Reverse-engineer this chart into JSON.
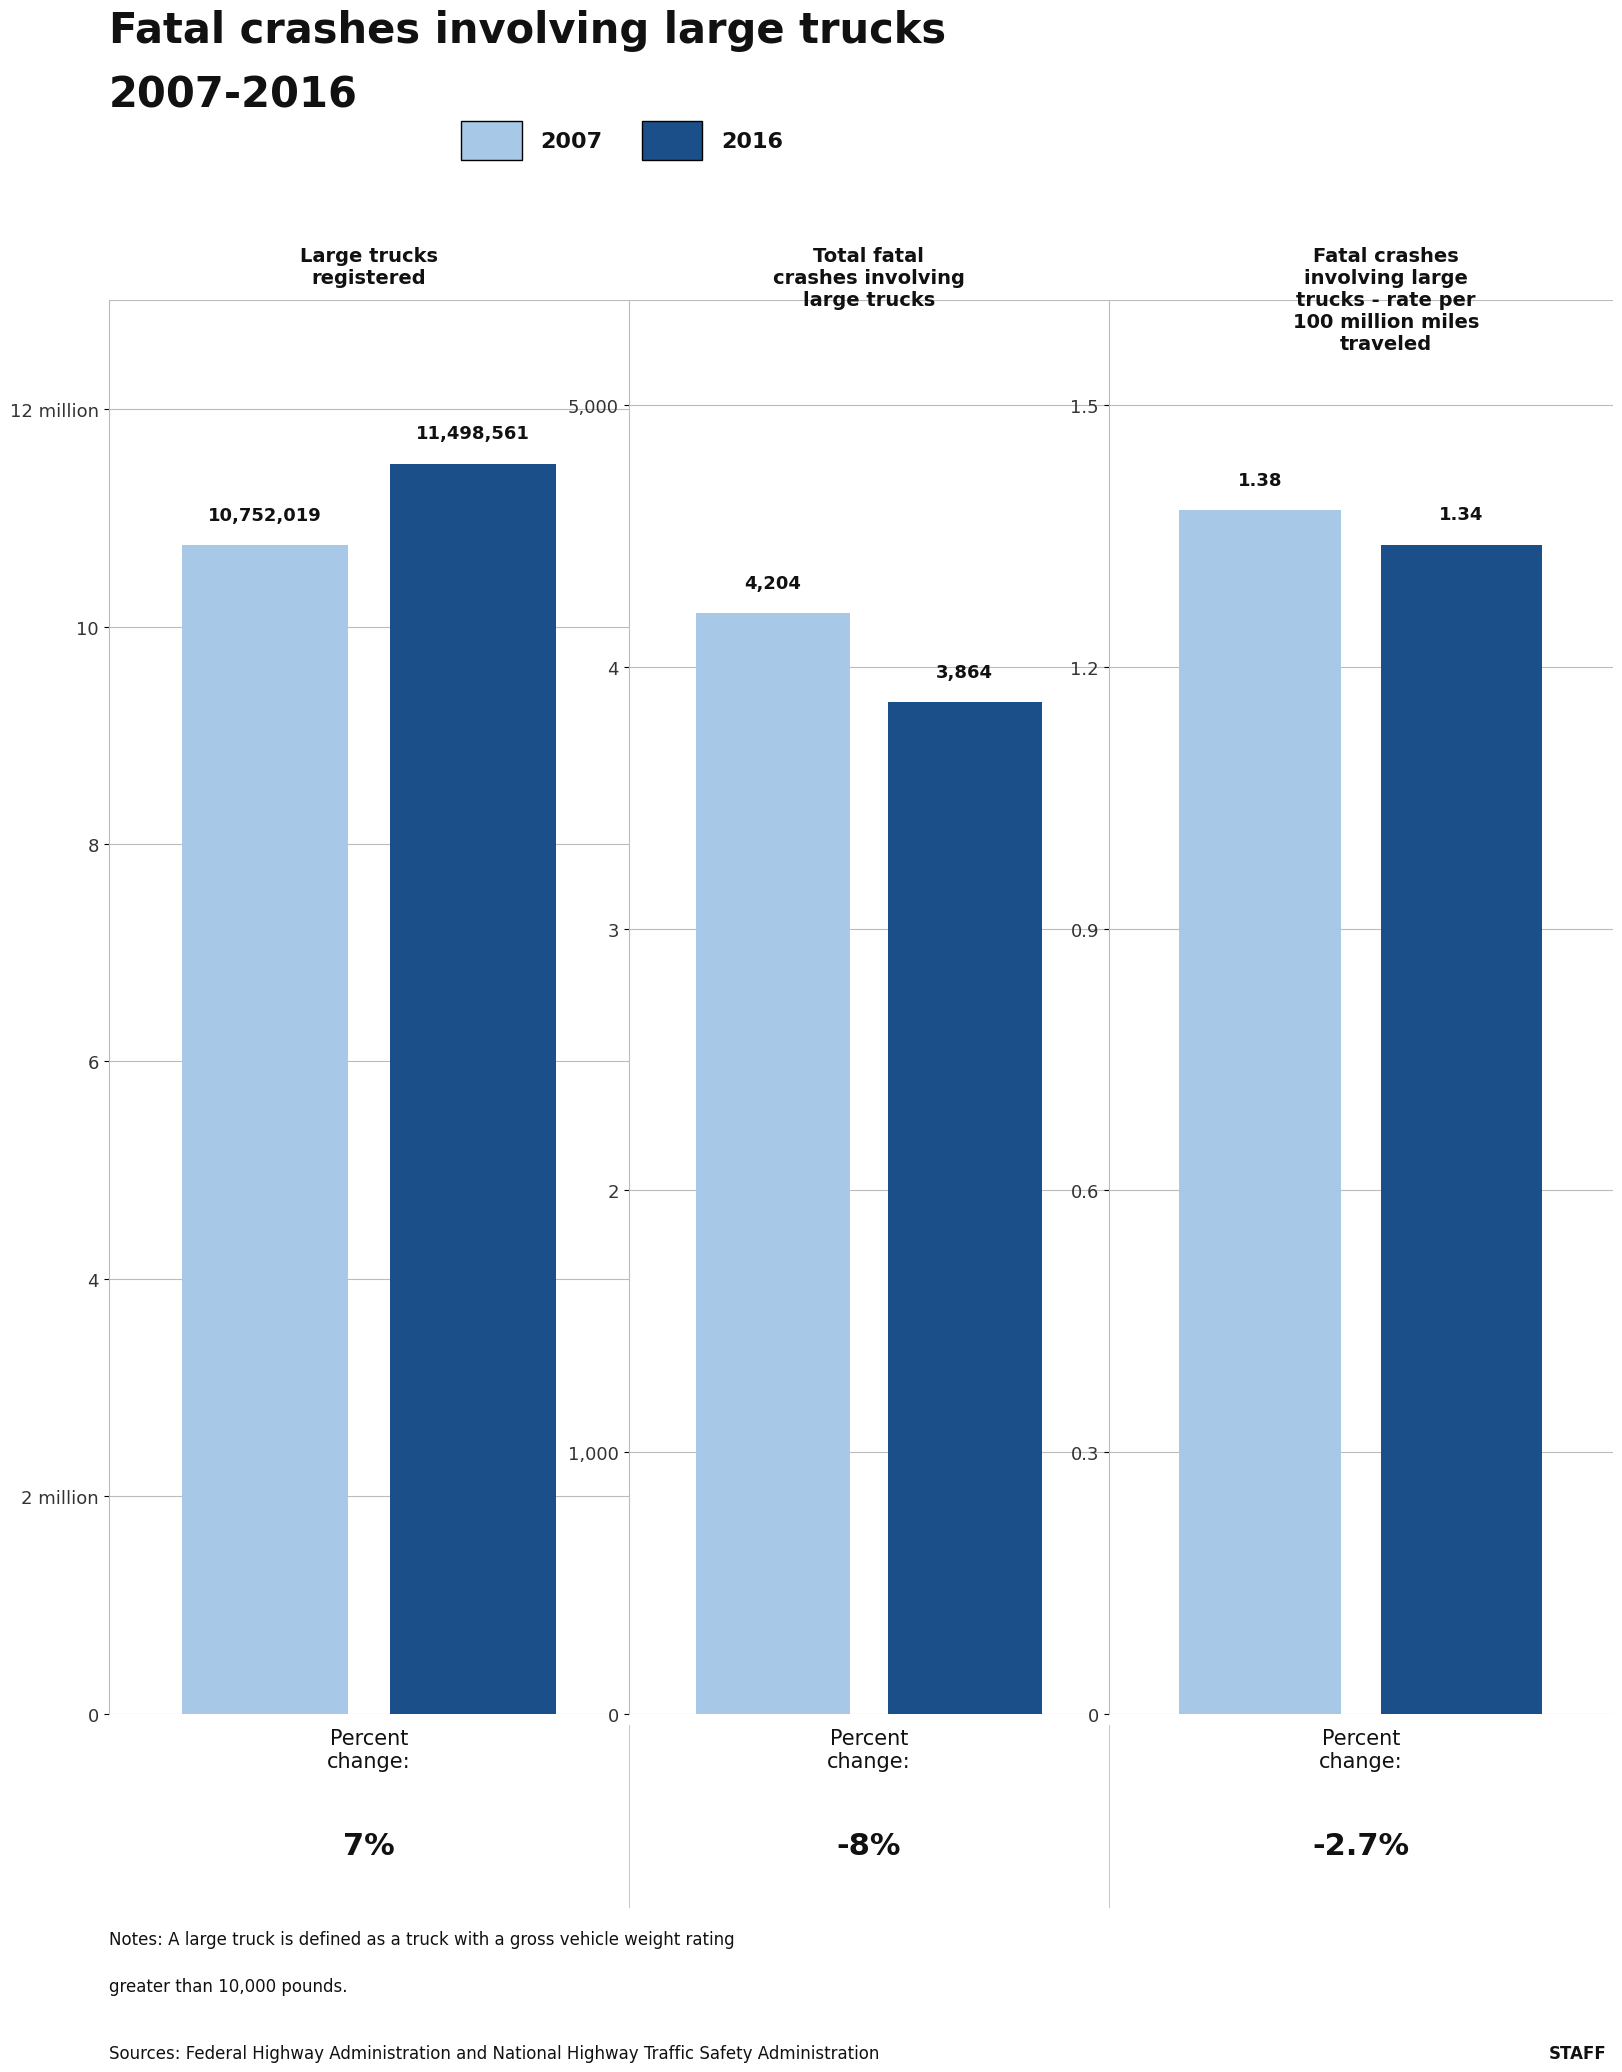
{
  "title_line1": "Fatal crashes involving large trucks",
  "title_line2": "2007-2016",
  "title_fontsize": 30,
  "color_light_blue": "#a8c8e8",
  "color_dark_blue": "#1a4f8a",
  "panel1": {
    "subtitle": "Large trucks\nregistered",
    "val_2007": 10752019,
    "val_2016": 11498561,
    "label_2007": "10,752,019",
    "label_2016": "11,498,561",
    "yticks": [
      0,
      2000000,
      4000000,
      6000000,
      8000000,
      10000000,
      12000000
    ],
    "ytick_labels": [
      "0",
      "2 million",
      "4",
      "6",
      "8",
      "10",
      "12 million"
    ],
    "ymax": 13000000,
    "percent_change": "7%"
  },
  "panel2": {
    "subtitle": "Total fatal\ncrashes involving\nlarge trucks",
    "val_2007": 4204,
    "val_2016": 3864,
    "label_2007": "4,204",
    "label_2016": "3,864",
    "yticks": [
      0,
      1000,
      2000,
      3000,
      4000,
      5000
    ],
    "ytick_labels": [
      "0",
      "1,000",
      "2",
      "3",
      "4",
      "5,000"
    ],
    "ymax": 5400,
    "percent_change": "-8%"
  },
  "panel3": {
    "subtitle": "Fatal crashes\ninvolving large\ntrucks - rate per\n100 million miles\ntraveled",
    "val_2007": 1.38,
    "val_2016": 1.34,
    "label_2007": "1.38",
    "label_2016": "1.34",
    "yticks": [
      0,
      0.3,
      0.6,
      0.9,
      1.2,
      1.5
    ],
    "ytick_labels": [
      "0",
      "0.3",
      "0.6",
      "0.9",
      "1.2",
      "1.5"
    ],
    "ymax": 1.62,
    "percent_change": "-2.7%"
  },
  "legend_2007": "2007",
  "legend_2016": "2016",
  "notes_line1": "Notes: A large truck is defined as a truck with a gross vehicle weight rating",
  "notes_line2": "greater than 10,000 pounds.",
  "sources": "Sources: Federal Highway Administration and National Highway Traffic Safety Administration",
  "staff": "STAFF",
  "bg_color": "#ffffff",
  "grid_color": "#bbbbbb"
}
